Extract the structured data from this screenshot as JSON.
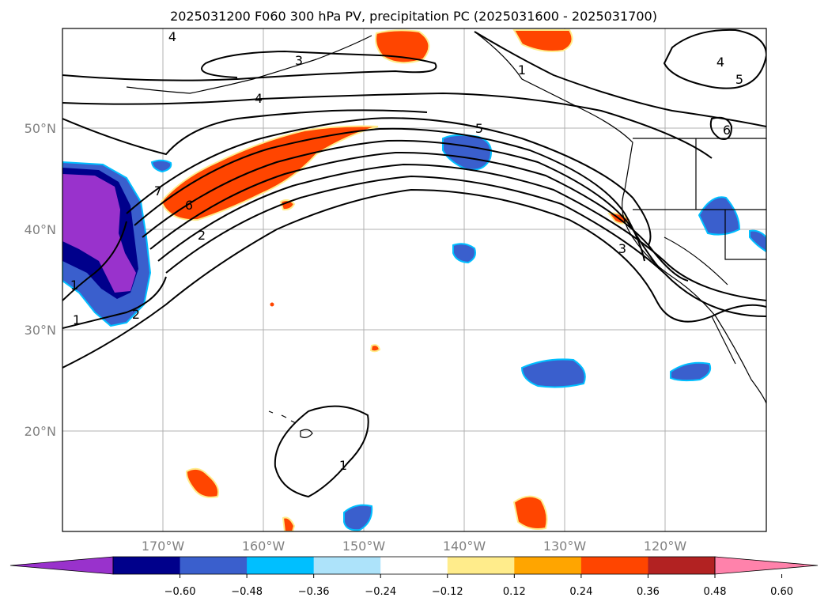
{
  "title": "2025031200 F060 300 hPa PV, precipitation PC (2025031600 - 2025031700)",
  "map": {
    "lon_ticks": [
      "170°W",
      "160°W",
      "150°W",
      "140°W",
      "130°W",
      "120°W"
    ],
    "lat_ticks": [
      "50°N",
      "40°N",
      "30°N",
      "20°N"
    ],
    "contour_labels": [
      "4",
      "3",
      "4",
      "5",
      "4",
      "5",
      "6",
      "7",
      "6",
      "2",
      "3",
      "1",
      "1",
      "2",
      "1",
      "1"
    ]
  },
  "colorbar": {
    "colors": [
      "#9932CC",
      "#00008B",
      "#3A5FCD",
      "#00BFFF",
      "#ADE3FA",
      "#FFFFFF",
      "#FFEC8B",
      "#FFA500",
      "#FF4500",
      "#B22222",
      "#FF82AB"
    ],
    "labels": [
      "−0.60",
      "−0.48",
      "−0.36",
      "−0.24",
      "−0.12",
      "0.12",
      "0.24",
      "0.36",
      "0.48",
      "0.60"
    ]
  }
}
